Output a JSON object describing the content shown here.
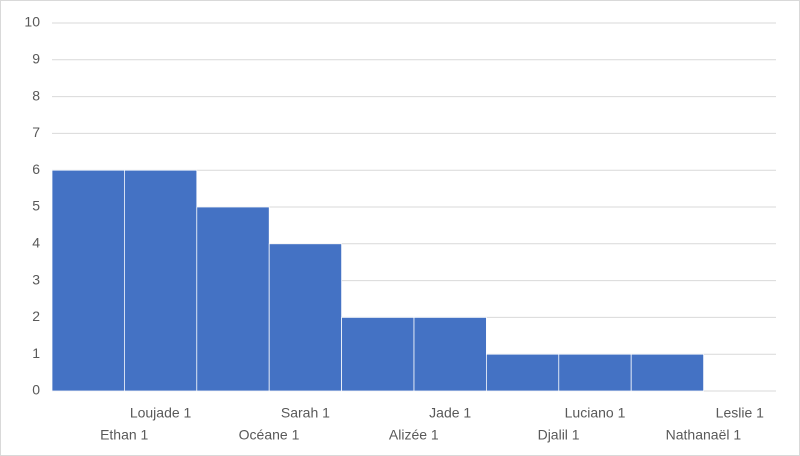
{
  "chart_data": {
    "type": "bar",
    "categories": [
      "Ethan 1",
      "Loujade 1",
      "Océane 1",
      "Sarah 1",
      "Alizée 1",
      "Jade 1",
      "Djalil 1",
      "Luciano 1",
      "Nathanaël 1",
      "Leslie 1"
    ],
    "values": [
      6,
      6,
      5,
      4,
      2,
      2,
      1,
      1,
      1,
      0
    ],
    "color": "#4472c4",
    "ylim": [
      0,
      10
    ],
    "yticks": [
      0,
      1,
      2,
      3,
      4,
      5,
      6,
      7,
      8,
      9,
      10
    ],
    "grid": true
  }
}
